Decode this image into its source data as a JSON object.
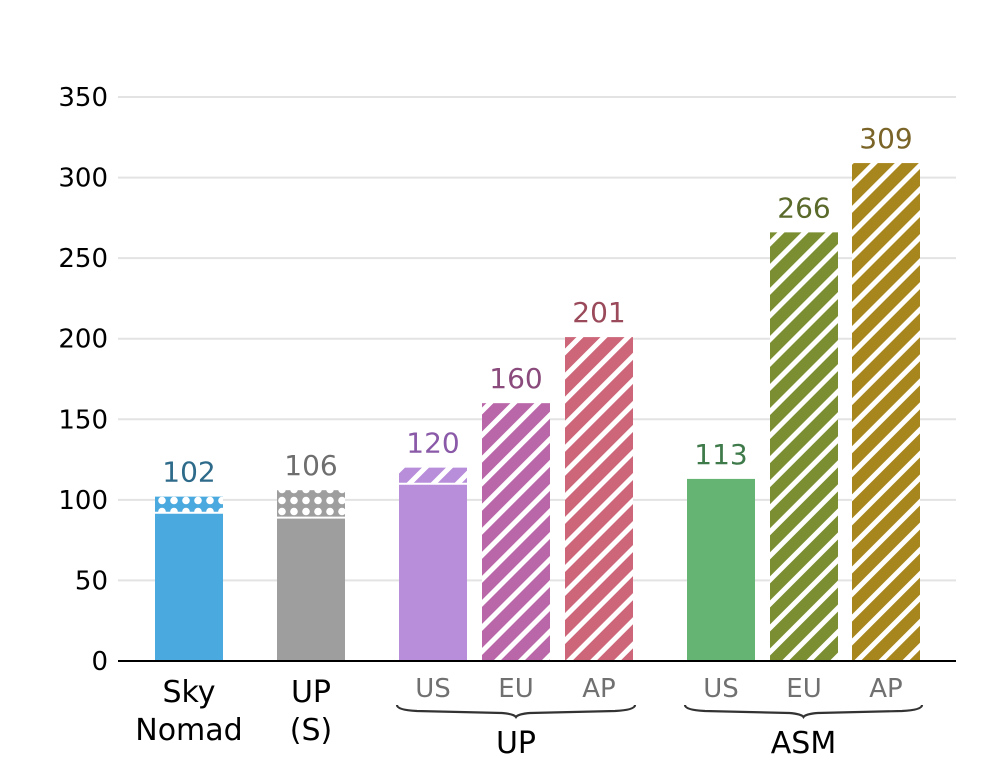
{
  "chart_data": {
    "type": "bar",
    "ylim": [
      0,
      350
    ],
    "yticks": [
      0,
      50,
      100,
      150,
      200,
      250,
      300,
      350
    ],
    "grid": true,
    "bars": [
      {
        "key": "sky-nomad",
        "category": "Sky\nNomad",
        "sublabel": "",
        "group": "",
        "value": 102,
        "base_value": 92,
        "color": "#4aa9de",
        "label_color": "#2e6b8a",
        "pattern": "dots"
      },
      {
        "key": "up-s",
        "category": "UP\n(S)",
        "sublabel": "",
        "group": "",
        "value": 106,
        "base_value": 89,
        "color": "#9e9e9e",
        "label_color": "#6e6e6e",
        "pattern": "dots"
      },
      {
        "key": "up-us",
        "category": "",
        "sublabel": "US",
        "group": "UP",
        "value": 120,
        "base_value": 110,
        "color": "#b88edb",
        "label_color": "#8a5aa8",
        "pattern": "hatch"
      },
      {
        "key": "up-eu",
        "category": "",
        "sublabel": "EU",
        "group": "UP",
        "value": 160,
        "base_value": 0,
        "color": "#b967a8",
        "label_color": "#8a4a7c",
        "pattern": "hatch"
      },
      {
        "key": "up-ap",
        "category": "",
        "sublabel": "AP",
        "group": "UP",
        "value": 201,
        "base_value": 0,
        "color": "#cc6678",
        "label_color": "#9a4a5a",
        "pattern": "hatch"
      },
      {
        "key": "asm-us",
        "category": "",
        "sublabel": "US",
        "group": "ASM",
        "value": 113,
        "base_value": 113,
        "color": "#66b474",
        "label_color": "#3e7a4a",
        "pattern": "solid"
      },
      {
        "key": "asm-eu",
        "category": "",
        "sublabel": "EU",
        "group": "ASM",
        "value": 266,
        "base_value": 0,
        "color": "#7b8f32",
        "label_color": "#5a6a2a",
        "pattern": "hatch"
      },
      {
        "key": "asm-ap",
        "category": "",
        "sublabel": "AP",
        "group": "ASM",
        "value": 309,
        "base_value": 0,
        "color": "#a8861e",
        "label_color": "#7a6428",
        "pattern": "hatch"
      }
    ],
    "groups": [
      {
        "name": "UP",
        "members": [
          "up-us",
          "up-eu",
          "up-ap"
        ]
      },
      {
        "name": "ASM",
        "members": [
          "asm-us",
          "asm-eu",
          "asm-ap"
        ]
      }
    ]
  }
}
